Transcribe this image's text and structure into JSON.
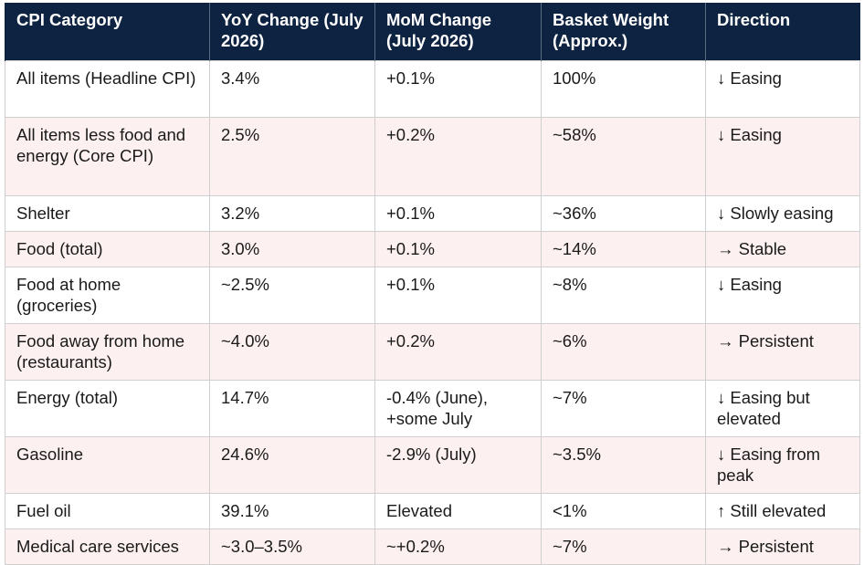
{
  "table": {
    "headers": [
      "CPI Category",
      "YoY Change (July 2026)",
      "MoM Change (July 2026)",
      "Basket Weight (Approx.)",
      "Direction"
    ],
    "rows": [
      [
        "All items (Headline CPI)",
        "3.4%",
        "+0.1%",
        "100%",
        "↓ Easing"
      ],
      [
        "All items less food and energy (Core CPI)",
        "2.5%",
        "+0.2%",
        "~58%",
        "↓ Easing"
      ],
      [
        "Shelter",
        "3.2%",
        "+0.1%",
        "~36%",
        "↓ Slowly easing"
      ],
      [
        "Food (total)",
        "3.0%",
        "+0.1%",
        "~14%",
        "→ Stable"
      ],
      [
        "Food at home (groceries)",
        "~2.5%",
        "+0.1%",
        "~8%",
        "↓ Easing"
      ],
      [
        "Food away from home (restaurants)",
        "~4.0%",
        "+0.2%",
        "~6%",
        "→ Persistent"
      ],
      [
        "Energy (total)",
        "14.7%",
        "-0.4% (June), +some July",
        "~7%",
        "↓ Easing but elevated"
      ],
      [
        "Gasoline",
        "24.6%",
        "-2.9% (July)",
        "~3.5%",
        "↓ Easing from peak"
      ],
      [
        "Fuel oil",
        "39.1%",
        "Elevated",
        "<1%",
        "↑ Still elevated"
      ],
      [
        "Medical care services",
        "~3.0–3.5%",
        "~+0.2%",
        "~7%",
        "→ Persistent"
      ]
    ]
  },
  "colors": {
    "header_bg": "#0e2341",
    "header_text": "#ffffff",
    "row_alt_bg": "#fdf0f0",
    "row_bg": "#ffffff",
    "grid": "#cfcfcf"
  }
}
